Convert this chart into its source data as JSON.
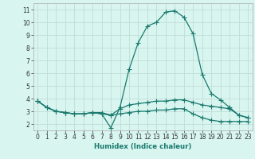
{
  "xlabel": "Humidex (Indice chaleur)",
  "x_values": [
    0,
    1,
    2,
    3,
    4,
    5,
    6,
    7,
    8,
    9,
    10,
    11,
    12,
    13,
    14,
    15,
    16,
    17,
    18,
    19,
    20,
    21,
    22,
    23
  ],
  "line1": [
    3.8,
    3.3,
    3.0,
    2.9,
    2.8,
    2.8,
    2.9,
    2.8,
    1.7,
    3.3,
    6.3,
    8.4,
    9.7,
    10.0,
    10.8,
    10.9,
    10.4,
    9.1,
    5.9,
    4.4,
    3.9,
    3.3,
    2.7,
    2.5
  ],
  "line2": [
    3.8,
    3.3,
    3.0,
    2.9,
    2.8,
    2.8,
    2.9,
    2.8,
    2.7,
    3.2,
    3.5,
    3.6,
    3.7,
    3.8,
    3.8,
    3.9,
    3.9,
    3.7,
    3.5,
    3.4,
    3.3,
    3.2,
    2.7,
    2.5
  ],
  "line3": [
    3.8,
    3.3,
    3.0,
    2.9,
    2.8,
    2.8,
    2.9,
    2.9,
    2.7,
    2.8,
    2.9,
    3.0,
    3.0,
    3.1,
    3.1,
    3.2,
    3.2,
    2.8,
    2.5,
    2.3,
    2.2,
    2.2,
    2.2,
    2.2
  ],
  "line_color": "#1a7a6e",
  "bg_color": "#d8f5f0",
  "grid_color": "#c0ddd8",
  "ylim": [
    1.5,
    11.5
  ],
  "xlim": [
    -0.5,
    23.5
  ],
  "yticks": [
    2,
    3,
    4,
    5,
    6,
    7,
    8,
    9,
    10,
    11
  ],
  "xticks": [
    0,
    1,
    2,
    3,
    4,
    5,
    6,
    7,
    8,
    9,
    10,
    11,
    12,
    13,
    14,
    15,
    16,
    17,
    18,
    19,
    20,
    21,
    22,
    23
  ],
  "tick_fontsize": 5.5,
  "xlabel_fontsize": 6.2,
  "marker_size": 2.0,
  "line_width": 0.9
}
